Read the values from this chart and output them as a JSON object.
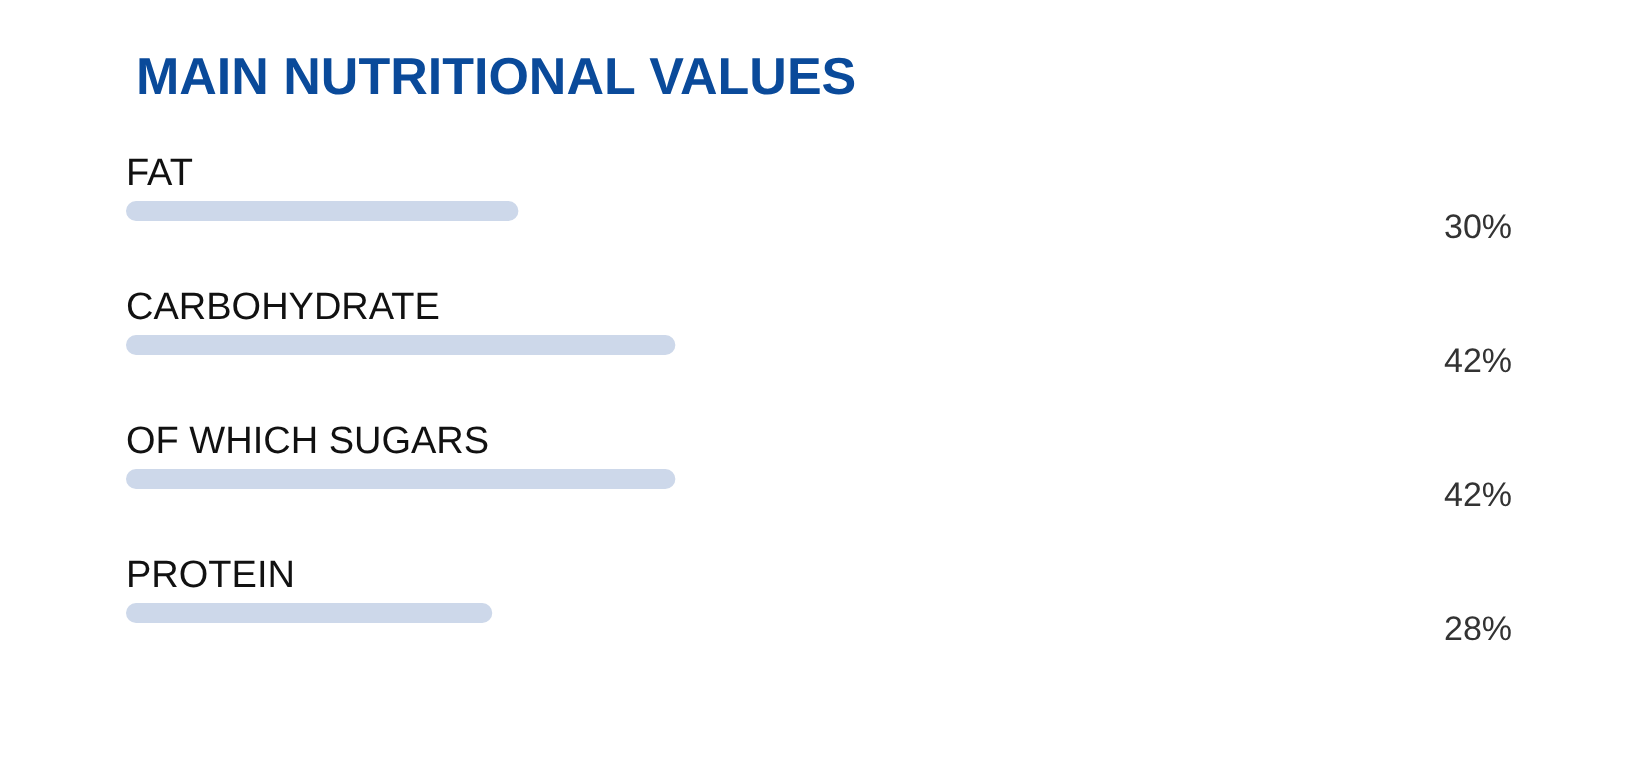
{
  "chart_data": {
    "type": "bar",
    "orientation": "horizontal",
    "title": "MAIN NUTRITIONAL VALUES",
    "categories": [
      "FAT",
      "CARBOHYDRATE",
      "OF WHICH SUGARS",
      "PROTEIN"
    ],
    "values": [
      30,
      42,
      42,
      28
    ],
    "value_labels": [
      "30%",
      "42%",
      "42%",
      "28%"
    ],
    "color": "#cdd8ea"
  }
}
